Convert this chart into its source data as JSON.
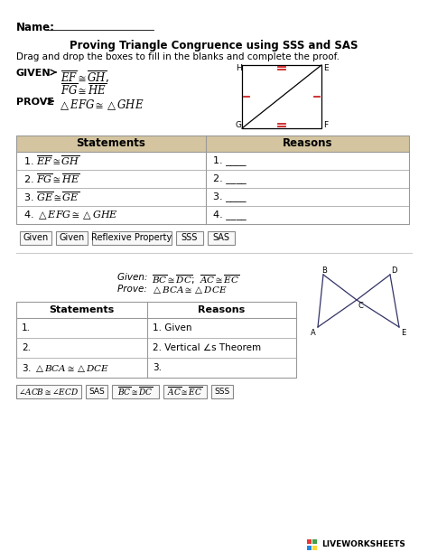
{
  "title": "Proving Triangle Congruence using SSS and SAS",
  "name_label": "Name:",
  "instruction": "Drag and drop the boxes to fill in the blanks and complete the proof.",
  "table1_header": [
    "Statements",
    "Reasons"
  ],
  "table1_rows": [
    [
      "1. $\\overline{EF} \\cong \\overline{GH}$",
      "1. ____"
    ],
    [
      "2. $\\overline{FG} \\cong \\overline{HE}$",
      "2. ____"
    ],
    [
      "3. $\\overline{GE} \\cong \\overline{GE}$",
      "3. ____"
    ],
    [
      "4. $\\triangle EFG \\cong \\triangle GHE$",
      "4. ____"
    ]
  ],
  "buttons1": [
    "Given",
    "Given",
    "Reflexive Property",
    "SSS",
    "SAS"
  ],
  "table2_header": [
    "Statements",
    "Reasons"
  ],
  "table2_rows": [
    [
      "1.",
      "1. Given"
    ],
    [
      "2.",
      "2. Vertical ∠s Theorem"
    ],
    [
      "3. $\\triangle BCA \\cong \\triangle DCE$",
      "3."
    ]
  ],
  "buttons2": [
    "$\\angle ACB \\cong \\angle ECD$",
    "SAS",
    "$\\overline{BC} \\cong \\overline{DC}$",
    "$\\overline{AC} \\cong \\overline{EC}$",
    "SSS"
  ],
  "bg_color": "#ffffff",
  "table_header_color": "#d4c5a0",
  "table_border_color": "#999999",
  "button_bg": "#f8f8f8",
  "button_border": "#888888",
  "lw_colors": [
    "#e53935",
    "#43a047",
    "#1e88e5",
    "#fdd835"
  ]
}
